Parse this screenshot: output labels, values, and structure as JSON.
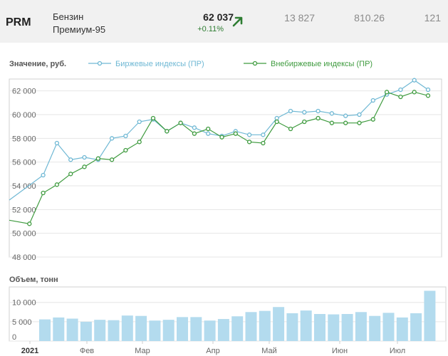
{
  "header": {
    "ticker": "PRM",
    "name_line1": "Бензин",
    "name_line2": "Премиум-95",
    "price": "62 037",
    "change": "+0.11%",
    "arrow_icon": "arrow-up-right-icon",
    "stat1": "13 827",
    "stat2": "810.26",
    "stat3": "121"
  },
  "colors": {
    "exchange": "#6fb8d4",
    "otc": "#3f9b3f",
    "bar": "#b3dbee",
    "grid": "#e6e6e6"
  },
  "chart_data": [
    {
      "type": "line",
      "title": "Значение, руб.",
      "x_tick_labels": [
        "2021",
        "Фев",
        "Мар",
        "Апр",
        "Май",
        "Июн",
        "Июл"
      ],
      "ylim": [
        48000,
        63000
      ],
      "yticks": [
        48000,
        50000,
        52000,
        54000,
        56000,
        58000,
        60000,
        62000
      ],
      "ytick_labels": [
        "48 000",
        "50 000",
        "52 000",
        "54 000",
        "56 000",
        "58 000",
        "60 000",
        "62 000"
      ],
      "series": [
        {
          "name": "Биржевые индексы (ПР)",
          "values": [
            52800,
            54900,
            57600,
            56200,
            56400,
            56200,
            58000,
            58200,
            59400,
            59600,
            58600,
            59300,
            58900,
            58400,
            58200,
            58600,
            58300,
            58300,
            59700,
            60300,
            60200,
            60300,
            60100,
            59900,
            60000,
            61200,
            61700,
            62100,
            62900,
            62100
          ],
          "leading_point": true
        },
        {
          "name": "Внебиржевые индексы (ПР)",
          "values": [
            51100,
            50800,
            53400,
            54100,
            55000,
            55600,
            56300,
            56200,
            57000,
            57700,
            59700,
            58600,
            59300,
            58400,
            58800,
            58100,
            58400,
            57700,
            57600,
            59400,
            58800,
            59400,
            59700,
            59300,
            59300,
            59300,
            59600,
            61900,
            61500,
            61900,
            61600
          ],
          "leading_point": true
        }
      ]
    },
    {
      "type": "bar",
      "title": "Объем, тонн",
      "ylim": [
        0,
        14000
      ],
      "yticks": [
        0,
        5000,
        10000
      ],
      "ytick_labels": [
        "0",
        "5 000",
        "10 000"
      ],
      "values": [
        5600,
        6100,
        5800,
        5000,
        5500,
        5400,
        6600,
        6500,
        5300,
        5500,
        6200,
        6200,
        5300,
        5700,
        6400,
        7500,
        7800,
        8800,
        7200,
        7900,
        7000,
        6900,
        7000,
        7500,
        6500,
        7300,
        6100,
        7200,
        13000
      ]
    }
  ]
}
